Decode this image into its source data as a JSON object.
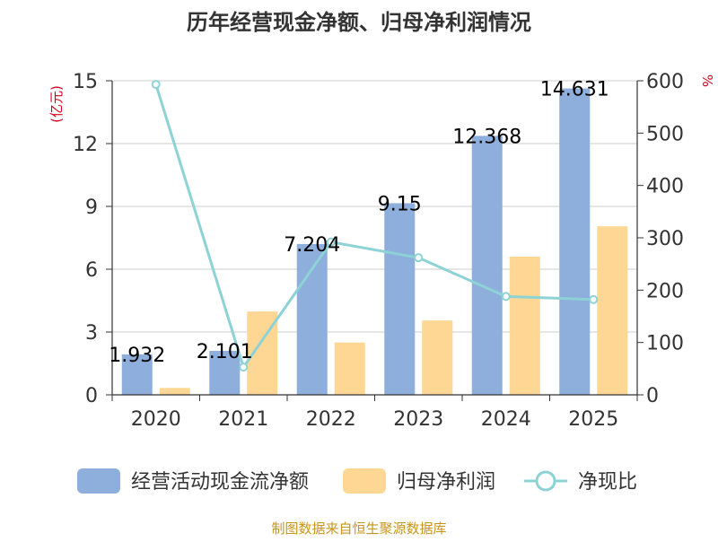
{
  "chart_data": {
    "type": "bar",
    "title": "历年经营现金净额、归母净利润情况",
    "categories": [
      "2020",
      "2021",
      "2022",
      "2023",
      "2024",
      "2025"
    ],
    "series": [
      {
        "name": "经营活动现金流净额",
        "kind": "bar",
        "axis": "left",
        "color": "#8eaedc",
        "values": [
          1.932,
          2.101,
          7.204,
          9.15,
          12.368,
          14.631
        ],
        "labels": [
          "1.932",
          "2.101",
          "7.204",
          "9.15",
          "12.368",
          "14.631"
        ]
      },
      {
        "name": "归母净利润",
        "kind": "bar",
        "axis": "left",
        "color": "#fed795",
        "values": [
          0.33,
          3.98,
          2.5,
          3.55,
          6.6,
          8.05
        ]
      },
      {
        "name": "净现比",
        "kind": "line",
        "axis": "right",
        "color": "#8dd3d6",
        "values": [
          593,
          53,
          292,
          262,
          188,
          182
        ]
      }
    ],
    "y_left": {
      "label": "(亿元)",
      "min": 0,
      "max": 15,
      "ticks": [
        "0",
        "3",
        "6",
        "9",
        "12",
        "15"
      ]
    },
    "y_right": {
      "label": "%",
      "min": 0,
      "max": 600,
      "ticks": [
        "0",
        "100",
        "200",
        "300",
        "400",
        "500",
        "600"
      ]
    },
    "grid": true,
    "legend_position": "bottom"
  },
  "source": "制图数据来自恒生聚源数据库",
  "colors": {
    "title": "#333333",
    "axis_label": "#d0021b",
    "source": "#c8951d"
  }
}
